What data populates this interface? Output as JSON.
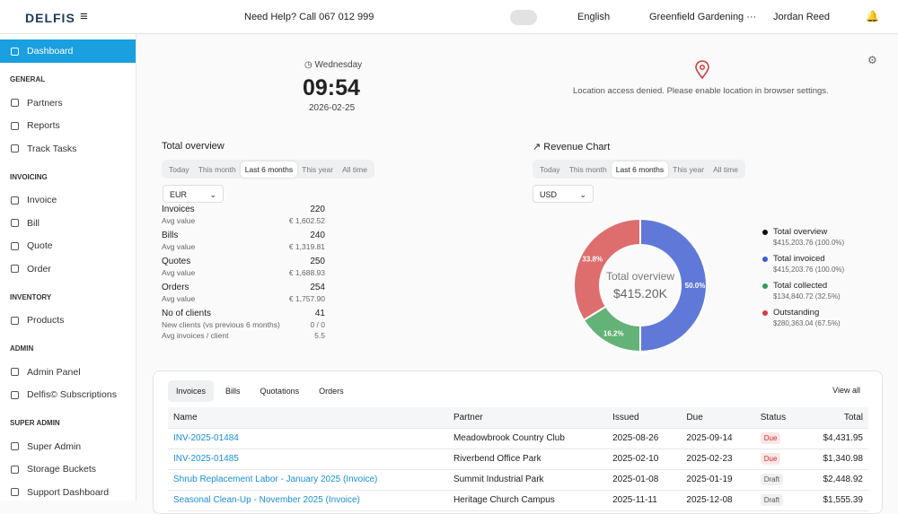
{
  "header": {
    "logo": "DELFIS",
    "help": "Need Help? Call 067 012 999",
    "language": "English",
    "organization": "Greenfield Gardening ···",
    "user": "Jordan Reed"
  },
  "sidebar": {
    "active": "Dashboard",
    "sections": [
      {
        "title": "GENERAL",
        "items": [
          "Partners",
          "Reports",
          "Track Tasks"
        ]
      },
      {
        "title": "INVOICING",
        "items": [
          "Invoice",
          "Bill",
          "Quote",
          "Order"
        ]
      },
      {
        "title": "INVENTORY",
        "items": [
          "Products"
        ]
      },
      {
        "title": "ADMIN",
        "items": [
          "Admin Panel",
          "Delfis© Subscriptions"
        ]
      },
      {
        "title": "SUPER ADMIN",
        "items": [
          "Super Admin",
          "Storage Buckets",
          "Support Dashboard"
        ]
      }
    ]
  },
  "clock": {
    "day": "Wednesday",
    "time": "09:54",
    "date": "2026-02-25"
  },
  "location": {
    "message": "Location access denied. Please enable location in browser settings."
  },
  "overview": {
    "title": "Total overview",
    "tabs": [
      "Today",
      "This month",
      "Last 6 months",
      "This year",
      "All time"
    ],
    "active_tab": "Last 6 months",
    "currency": "EUR",
    "stats": [
      {
        "label": "Invoices",
        "value": "220",
        "sub_label": "Avg value",
        "sub_value": "€ 1,602.52"
      },
      {
        "label": "Bills",
        "value": "240",
        "sub_label": "Avg value",
        "sub_value": "€ 1,319.81"
      },
      {
        "label": "Quotes",
        "value": "250",
        "sub_label": "Avg value",
        "sub_value": "€ 1,688.93"
      },
      {
        "label": "Orders",
        "value": "254",
        "sub_label": "Avg value",
        "sub_value": "€ 1,757.90"
      }
    ],
    "clients": {
      "label": "No of clients",
      "value": "41",
      "rows": [
        {
          "label": "New clients (vs previous 6 months)",
          "value": "0 / 0"
        },
        {
          "label": "Avg invoices / client",
          "value": "5.5"
        }
      ]
    }
  },
  "revenue": {
    "title": "Revenue Chart",
    "tabs": [
      "Today",
      "This month",
      "Last 6 months",
      "This year",
      "All time"
    ],
    "active_tab": "Last 6 months",
    "currency": "USD",
    "legend": [
      {
        "name": "Total overview",
        "detail": "$415,203.76 (100.0%)",
        "color": "#111111"
      },
      {
        "name": "Total invoiced",
        "detail": "$415,203.76 (100.0%)",
        "color": "#3b5bd6"
      },
      {
        "name": "Total collected",
        "detail": "$134,840.72 (32.5%)",
        "color": "#2e9e55"
      },
      {
        "name": "Outstanding",
        "detail": "$280,363.04 (67.5%)",
        "color": "#d63b3b"
      }
    ]
  },
  "chart_data": {
    "type": "donut",
    "center_title": "Total overview",
    "center_value": "$415.20K",
    "values": [
      50.0,
      16.2,
      33.8
    ],
    "value_labels": [
      "50.0%",
      "16.2%",
      "33.8%"
    ],
    "colors": [
      "#6079d8",
      "#63b277",
      "#de6e6e"
    ]
  },
  "table": {
    "tabs": [
      "Invoices",
      "Bills",
      "Quotations",
      "Orders"
    ],
    "active_tab": "Invoices",
    "view_all": "View all",
    "columns": [
      "Name",
      "Partner",
      "Issued",
      "Due",
      "Status",
      "Total"
    ],
    "rows": [
      [
        "INV-2025-01484",
        "Meadowbrook Country Club",
        "2025-08-26",
        "2025-09-14",
        "Due",
        "$4,431.95"
      ],
      [
        "INV-2025-01485",
        "Riverbend Office Park",
        "2025-02-10",
        "2025-02-23",
        "Due",
        "$1,340.98"
      ],
      [
        "Shrub Replacement Labor - January 2025 (Invoice)",
        "Summit Industrial Park",
        "2025-01-08",
        "2025-01-19",
        "Draft",
        "$2,448.92"
      ],
      [
        "Seasonal Clean-Up - November 2025 (Invoice)",
        "Heritage Church Campus",
        "2025-11-11",
        "2025-12-08",
        "Draft",
        "$1,555.39"
      ]
    ]
  }
}
